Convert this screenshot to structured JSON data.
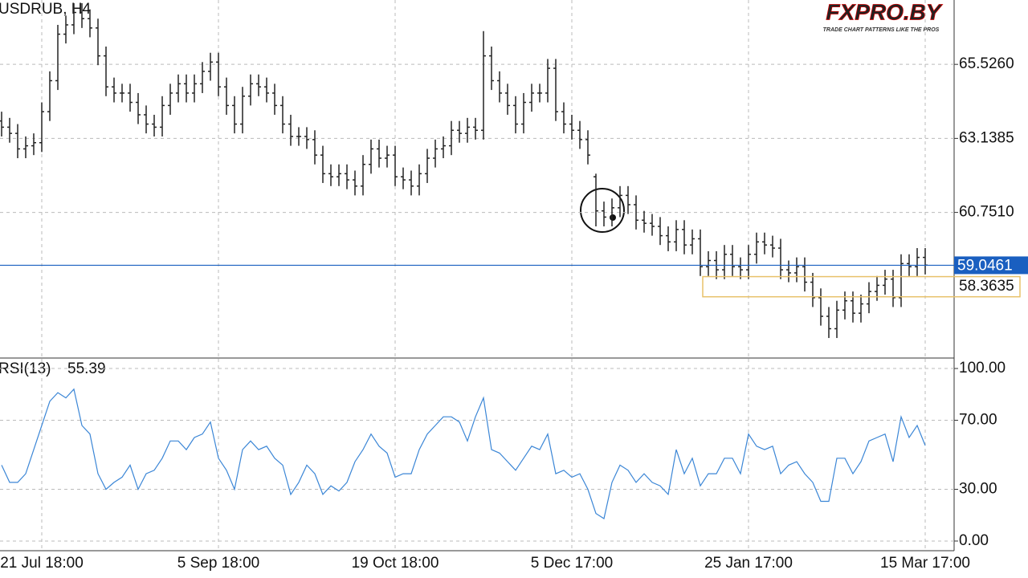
{
  "logo": {
    "text": "FXPRO.BY",
    "tagline": "TRADE CHART PATTERNS LIKE THE PROS"
  },
  "chart_data": [
    {
      "type": "ohlc",
      "title": "USDRUB, H4",
      "color": "#222222",
      "open": [
        63.7,
        63.5,
        63.3,
        62.8,
        62.9,
        63.0,
        64.0,
        65.0,
        66.5,
        66.8,
        67.2,
        67.0,
        66.7,
        65.8,
        64.8,
        64.6,
        64.6,
        64.3,
        63.9,
        63.6,
        63.5,
        64.2,
        64.6,
        64.9,
        64.6,
        64.9,
        65.3,
        65.6,
        64.8,
        64.2,
        63.6,
        64.5,
        64.9,
        64.8,
        64.6,
        64.2,
        63.6,
        63.2,
        63.2,
        63.1,
        62.6,
        62.0,
        61.9,
        62.0,
        61.8,
        61.6,
        62.3,
        62.8,
        62.5,
        62.6,
        61.9,
        61.8,
        61.6,
        62.0,
        62.5,
        62.8,
        62.9,
        63.4,
        63.3,
        63.5,
        63.4,
        65.8,
        65.0,
        64.6,
        64.2,
        63.6,
        64.3,
        64.6,
        64.6,
        65.4,
        64.0,
        63.6,
        63.4,
        63.1,
        61.9,
        60.8,
        60.6,
        60.9,
        61.3,
        61.0,
        60.5,
        60.4,
        60.3,
        60.0,
        59.8,
        60.2,
        59.7,
        59.9,
        59.0,
        59.2,
        58.9,
        59.4,
        59.0,
        58.9,
        59.4,
        59.8,
        59.7,
        59.6,
        58.9,
        58.8,
        59.0,
        58.5,
        58.0,
        57.4,
        57.0,
        57.6,
        57.9,
        57.5,
        57.8,
        58.2,
        58.4,
        58.6,
        58.0,
        59.1,
        59.0,
        59.3
      ],
      "high": [
        64.0,
        63.8,
        63.6,
        63.2,
        63.3,
        64.3,
        65.3,
        66.8,
        67.1,
        67.5,
        67.5,
        67.3,
        67.0,
        66.1,
        65.1,
        64.9,
        64.9,
        64.6,
        64.2,
        63.9,
        64.5,
        64.9,
        65.2,
        65.2,
        65.2,
        65.6,
        65.9,
        65.9,
        65.1,
        64.5,
        64.8,
        65.2,
        65.2,
        65.1,
        64.9,
        64.5,
        63.9,
        63.5,
        63.5,
        63.4,
        62.9,
        62.3,
        62.3,
        62.3,
        62.1,
        62.6,
        63.1,
        63.1,
        62.9,
        62.9,
        62.2,
        62.1,
        62.3,
        62.8,
        63.1,
        63.2,
        63.7,
        63.7,
        63.8,
        63.8,
        66.6,
        66.1,
        65.3,
        64.9,
        64.5,
        64.6,
        64.9,
        64.9,
        65.7,
        65.7,
        64.3,
        63.9,
        63.7,
        63.4,
        62.0,
        61.1,
        61.2,
        61.6,
        61.6,
        61.3,
        60.8,
        60.7,
        60.6,
        60.3,
        60.5,
        60.5,
        60.2,
        60.2,
        59.5,
        59.5,
        59.7,
        59.7,
        59.3,
        59.7,
        60.1,
        60.1,
        60.0,
        59.9,
        59.2,
        59.3,
        59.3,
        58.8,
        58.3,
        57.7,
        57.9,
        58.2,
        58.2,
        58.1,
        58.5,
        58.7,
        58.9,
        58.9,
        59.4,
        59.4,
        59.6,
        59.6
      ],
      "low": [
        63.2,
        63.0,
        62.5,
        62.5,
        62.6,
        62.7,
        63.7,
        64.7,
        66.2,
        66.5,
        66.7,
        66.4,
        65.5,
        64.5,
        64.3,
        64.3,
        64.0,
        63.6,
        63.3,
        63.2,
        63.2,
        63.9,
        64.3,
        64.3,
        64.3,
        64.6,
        65.0,
        64.5,
        63.9,
        63.3,
        63.3,
        64.2,
        64.5,
        64.3,
        63.9,
        63.3,
        62.9,
        62.9,
        62.8,
        62.3,
        61.7,
        61.6,
        61.6,
        61.5,
        61.3,
        61.3,
        62.0,
        62.2,
        62.2,
        61.6,
        61.5,
        61.3,
        61.3,
        61.7,
        62.2,
        62.5,
        62.6,
        63.0,
        63.0,
        63.1,
        63.1,
        64.7,
        64.3,
        63.9,
        63.3,
        63.3,
        64.0,
        64.3,
        64.3,
        63.7,
        63.3,
        63.1,
        62.8,
        62.3,
        60.3,
        60.3,
        60.3,
        60.6,
        60.7,
        60.2,
        60.1,
        60.0,
        59.7,
        59.5,
        59.5,
        59.4,
        59.4,
        58.7,
        58.7,
        58.6,
        58.6,
        58.7,
        58.6,
        58.6,
        59.1,
        59.4,
        59.3,
        58.6,
        58.5,
        58.5,
        58.2,
        57.7,
        57.1,
        56.7,
        56.7,
        57.3,
        57.2,
        57.2,
        57.5,
        57.9,
        58.1,
        57.7,
        57.7,
        58.7,
        58.7,
        58.75
      ],
      "close": [
        63.5,
        63.3,
        62.8,
        62.9,
        63.0,
        64.0,
        65.0,
        66.5,
        66.8,
        67.2,
        67.0,
        66.7,
        65.8,
        64.8,
        64.6,
        64.6,
        64.3,
        63.9,
        63.6,
        63.5,
        64.2,
        64.6,
        64.9,
        64.6,
        64.9,
        65.3,
        65.6,
        64.8,
        64.2,
        63.6,
        64.5,
        64.9,
        64.8,
        64.6,
        64.2,
        63.6,
        63.2,
        63.2,
        63.1,
        62.6,
        62.0,
        61.9,
        62.0,
        61.8,
        61.6,
        62.3,
        62.8,
        62.5,
        62.6,
        61.9,
        61.8,
        61.6,
        62.0,
        62.5,
        62.8,
        62.9,
        63.4,
        63.3,
        63.5,
        63.4,
        65.8,
        65.0,
        64.6,
        64.2,
        63.6,
        64.3,
        64.6,
        64.6,
        65.4,
        64.0,
        63.6,
        63.4,
        63.1,
        62.6,
        60.8,
        60.6,
        60.9,
        61.3,
        61.0,
        60.5,
        60.4,
        60.3,
        60.0,
        59.8,
        60.2,
        59.7,
        59.9,
        59.0,
        59.2,
        58.9,
        59.4,
        59.0,
        58.9,
        59.4,
        59.8,
        59.7,
        59.6,
        58.9,
        58.8,
        59.0,
        58.5,
        58.0,
        57.4,
        57.0,
        57.6,
        57.9,
        57.5,
        57.8,
        58.2,
        58.4,
        58.6,
        58.0,
        59.1,
        59.0,
        59.3,
        59.05
      ],
      "ylim": [
        56.054,
        67.602
      ],
      "yticks": [
        {
          "value": 65.526,
          "label": "65.5260"
        },
        63.1385,
        {
          "value": 60.751,
          "label": "60.7510"
        }
      ],
      "current_price": 59.0461,
      "current_price_color": "#1a5fc0",
      "zone": {
        "low": 58.03,
        "high": 58.68,
        "level": 58.3635,
        "color": "#e8c26a"
      },
      "grid": true
    },
    {
      "type": "line",
      "title": "RSI(13)",
      "color": "#3b86d6",
      "values": [
        44,
        34,
        34,
        39,
        53,
        67,
        81,
        86,
        83,
        88,
        67,
        62,
        39,
        30,
        34,
        37,
        44,
        30,
        39,
        41,
        48,
        58,
        58,
        53,
        60,
        62,
        69,
        48,
        41,
        30,
        53,
        58,
        53,
        55,
        48,
        44,
        27,
        34,
        44,
        39,
        27,
        32,
        29,
        34,
        46,
        53,
        62,
        55,
        51,
        37,
        39,
        39,
        53,
        62,
        67,
        72,
        72,
        69,
        58,
        72,
        83,
        53,
        51,
        46,
        41,
        48,
        55,
        53,
        62,
        39,
        41,
        37,
        39,
        30,
        16,
        13,
        34,
        44,
        41,
        34,
        39,
        34,
        32,
        27,
        53,
        39,
        48,
        32,
        39,
        39,
        48,
        48,
        39,
        62,
        55,
        53,
        55,
        39,
        44,
        46,
        39,
        34,
        23,
        23,
        48,
        48,
        39,
        46,
        58,
        60,
        62,
        46,
        72,
        60,
        67,
        55.39
      ],
      "ylim": [
        -5.6,
        105.6
      ],
      "yticks": [
        {
          "value": 100,
          "label": "100.00"
        },
        {
          "value": 70,
          "label": "70.00"
        },
        {
          "value": 30,
          "label": "30.00"
        },
        {
          "value": 0,
          "label": "0.00"
        }
      ],
      "xlim": [
        -0.2,
        118.6
      ],
      "xticks": [
        {
          "value": 5,
          "label": "21 Jul 18:00"
        },
        {
          "value": 27,
          "label": "5 Sep 18:00"
        },
        {
          "value": 49,
          "label": "19 Oct 18:00"
        },
        {
          "value": 71,
          "label": "5 Dec 17:00"
        },
        {
          "value": 93,
          "label": "25 Jan 17:00"
        },
        {
          "value": 115,
          "label": "15 Mar 17:00"
        }
      ],
      "grid": true
    }
  ]
}
